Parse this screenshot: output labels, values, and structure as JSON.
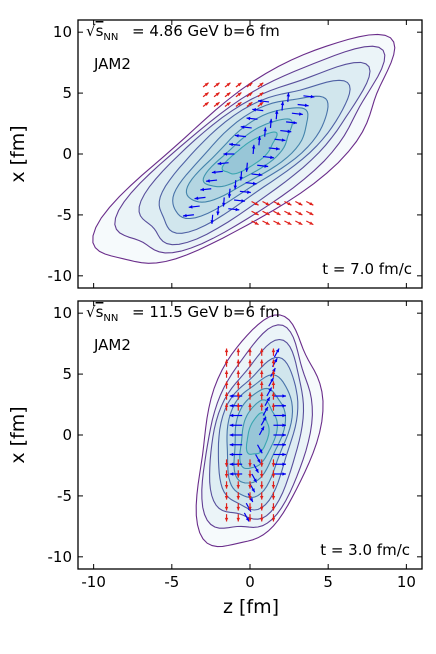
{
  "chart_data": [
    {
      "type": "contour",
      "panel": "top",
      "energy_label": "= 4.86 GeV b=6 fm",
      "model": "JAM2",
      "time_label": "t = 7.0 fm/c",
      "xlabel": "z [fm]",
      "ylabel": "x [fm]",
      "xlim": [
        -11,
        11
      ],
      "ylim": [
        -11,
        11
      ],
      "xticks": [
        "-10",
        "-5",
        "0",
        "5",
        "10"
      ],
      "yticks": [
        "10",
        "5",
        "0",
        "-5",
        "-10"
      ],
      "shape": {
        "cx": 0.0,
        "cy": 0.0,
        "angle_deg": 45,
        "semi_major": 12.5,
        "semi_minor": 4.3
      },
      "contour_levels": 8,
      "colors": {
        "outer": "#6a2c8a",
        "mid": "#4a6aa8",
        "inner": "#3aa6b0",
        "fill": "#2f8fb3",
        "arrow_blue": "#0000ee",
        "arrow_red": "#e0201a"
      }
    },
    {
      "type": "contour",
      "panel": "bottom",
      "energy_label": "= 11.5 GeV b=6 fm",
      "model": "JAM2",
      "time_label": "t = 3.0 fm/c",
      "xlabel": "z [fm]",
      "ylabel": "x [fm]",
      "xlim": [
        -11,
        11
      ],
      "ylim": [
        -11,
        11
      ],
      "xticks": [
        "-10",
        "-5",
        "0",
        "5",
        "10"
      ],
      "yticks": [
        "10",
        "5",
        "0",
        "-5",
        "-10"
      ],
      "shape": {
        "cx": 0.5,
        "cy": 0.0,
        "angle_deg": 80,
        "semi_major": 9.5,
        "semi_minor": 3.6
      },
      "contour_levels": 8,
      "colors": {
        "outer": "#6a2c8a",
        "mid": "#4a6aa8",
        "inner": "#3aa6b0",
        "fill": "#2f8fb3",
        "arrow_blue": "#0000ee",
        "arrow_red": "#e0201a"
      }
    }
  ]
}
